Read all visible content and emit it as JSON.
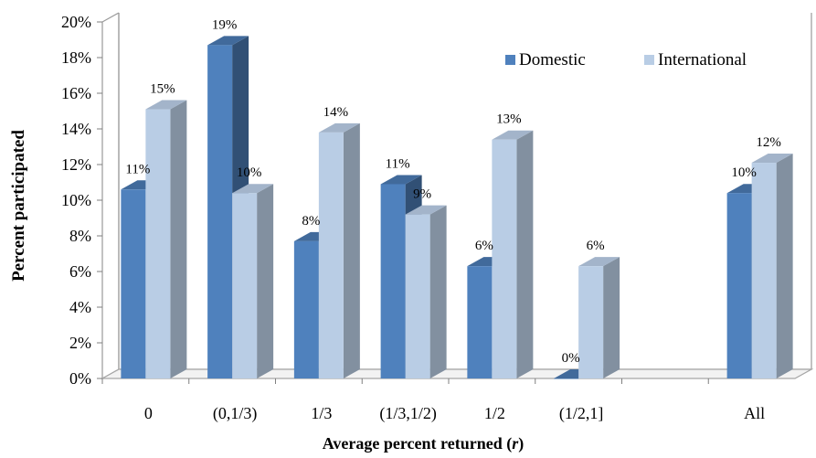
{
  "chart_data": {
    "type": "bar",
    "style": "3d-clustered-column",
    "categories": [
      "0",
      "(0,1/3)",
      "1/3",
      "(1/3,1/2)",
      "1/2",
      "(1/2,1]",
      "",
      "All"
    ],
    "series": [
      {
        "name": "Domestic",
        "color": "#4F81BD",
        "values": [
          10.6,
          18.7,
          7.7,
          10.9,
          6.3,
          0.0,
          null,
          10.4
        ],
        "labels": [
          "11%",
          "19%",
          "8%",
          "11%",
          "6%",
          "0%",
          "",
          "10%"
        ]
      },
      {
        "name": "International",
        "color": "#B9CDE5",
        "values": [
          15.1,
          10.4,
          13.8,
          9.2,
          13.4,
          6.3,
          null,
          12.1
        ],
        "labels": [
          "15%",
          "10%",
          "14%",
          "9%",
          "13%",
          "6%",
          "",
          "12%"
        ]
      }
    ],
    "yticks": [
      "0%",
      "2%",
      "4%",
      "6%",
      "8%",
      "10%",
      "12%",
      "14%",
      "16%",
      "18%",
      "20%"
    ],
    "ylim": [
      0,
      20
    ],
    "ylabel": "Percent participated",
    "xlabel": "Average percent returned (",
    "xlabel_var": "r",
    "xlabel_end": ")",
    "legend": "top-right",
    "grid": false,
    "colors": {
      "axis_wall": "#9a9a9a",
      "floor": "#a6a6a6"
    }
  }
}
